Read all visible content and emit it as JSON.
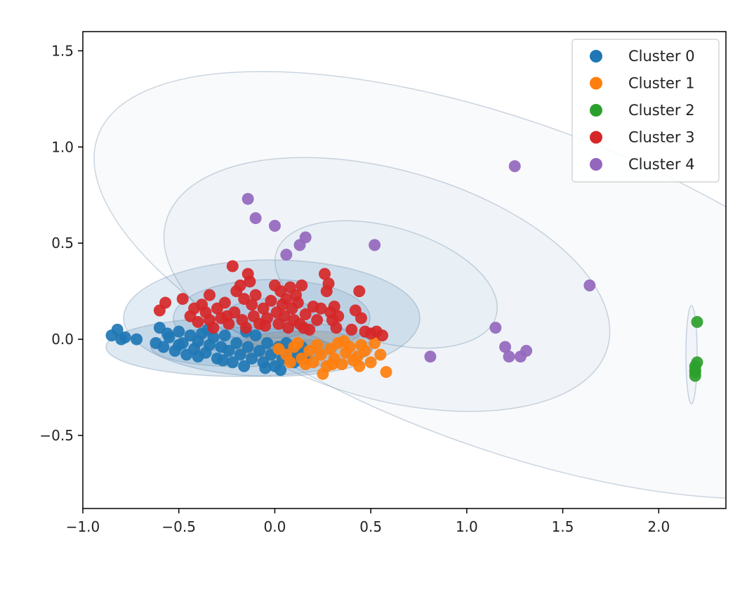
{
  "chart_data": {
    "type": "scatter",
    "title": "",
    "xlabel": "",
    "ylabel": "",
    "xlim": [
      -1.0,
      2.35
    ],
    "ylim": [
      -0.88,
      1.6
    ],
    "x_ticks": [
      -1.0,
      -0.5,
      0.0,
      0.5,
      1.0,
      1.5,
      2.0
    ],
    "x_tick_labels": [
      "−1.0",
      "−0.5",
      "0.0",
      "0.5",
      "1.0",
      "1.5",
      "2.0"
    ],
    "y_ticks": [
      -0.5,
      0.0,
      0.5,
      1.0,
      1.5
    ],
    "y_tick_labels": [
      "−0.5",
      "0.0",
      "0.5",
      "1.0",
      "1.5"
    ],
    "grid": false,
    "legend_position": "top-right",
    "series": [
      {
        "name": "Cluster 0",
        "color": "#1f77b4",
        "points": [
          [
            -0.85,
            0.02
          ],
          [
            -0.82,
            0.05
          ],
          [
            -0.8,
            0.0
          ],
          [
            -0.78,
            0.01
          ],
          [
            -0.72,
            0.0
          ],
          [
            -0.62,
            -0.02
          ],
          [
            -0.6,
            0.06
          ],
          [
            -0.58,
            -0.04
          ],
          [
            -0.55,
            0.01
          ],
          [
            -0.52,
            -0.06
          ],
          [
            -0.5,
            0.04
          ],
          [
            -0.48,
            -0.02
          ],
          [
            -0.46,
            -0.08
          ],
          [
            -0.44,
            0.02
          ],
          [
            -0.42,
            -0.05
          ],
          [
            -0.4,
            -0.01
          ],
          [
            -0.38,
            0.03
          ],
          [
            -0.36,
            -0.07
          ],
          [
            -0.34,
            -0.03
          ],
          [
            -0.32,
            0.01
          ],
          [
            -0.3,
            -0.1
          ],
          [
            -0.28,
            -0.04
          ],
          [
            -0.26,
            0.02
          ],
          [
            -0.24,
            -0.06
          ],
          [
            -0.22,
            -0.12
          ],
          [
            -0.2,
            -0.02
          ],
          [
            -0.18,
            -0.08
          ],
          [
            -0.16,
            -0.14
          ],
          [
            -0.14,
            -0.04
          ],
          [
            -0.12,
            -0.1
          ],
          [
            -0.1,
            0.02
          ],
          [
            -0.08,
            -0.06
          ],
          [
            -0.06,
            -0.12
          ],
          [
            -0.04,
            -0.02
          ],
          [
            -0.02,
            -0.08
          ],
          [
            0.0,
            -0.14
          ],
          [
            0.02,
            -0.04
          ],
          [
            0.04,
            -0.1
          ],
          [
            0.06,
            -0.02
          ],
          [
            0.08,
            -0.06
          ],
          [
            0.1,
            -0.12
          ],
          [
            0.12,
            -0.08
          ],
          [
            0.14,
            -0.04
          ],
          [
            0.16,
            -0.1
          ],
          [
            -0.56,
            0.03
          ],
          [
            -0.5,
            -0.03
          ],
          [
            -0.4,
            -0.09
          ],
          [
            -0.35,
            0.05
          ],
          [
            -0.27,
            -0.11
          ],
          [
            -0.15,
            0.04
          ],
          [
            -0.05,
            -0.15
          ],
          [
            0.03,
            -0.16
          ]
        ]
      },
      {
        "name": "Cluster 1",
        "color": "#ff7f0e",
        "points": [
          [
            0.02,
            -0.05
          ],
          [
            0.06,
            -0.08
          ],
          [
            0.1,
            -0.04
          ],
          [
            0.14,
            -0.1
          ],
          [
            0.18,
            -0.06
          ],
          [
            0.2,
            -0.12
          ],
          [
            0.22,
            -0.03
          ],
          [
            0.24,
            -0.08
          ],
          [
            0.25,
            -0.18
          ],
          [
            0.27,
            -0.14
          ],
          [
            0.29,
            -0.05
          ],
          [
            0.31,
            -0.1
          ],
          [
            0.33,
            -0.02
          ],
          [
            0.35,
            -0.13
          ],
          [
            0.37,
            -0.07
          ],
          [
            0.39,
            -0.04
          ],
          [
            0.41,
            -0.11
          ],
          [
            0.43,
            -0.09
          ],
          [
            0.45,
            -0.03
          ],
          [
            0.47,
            -0.06
          ],
          [
            0.5,
            -0.12
          ],
          [
            0.52,
            -0.02
          ],
          [
            0.55,
            -0.08
          ],
          [
            0.58,
            -0.17
          ],
          [
            0.3,
            -0.13
          ],
          [
            0.16,
            -0.13
          ],
          [
            0.12,
            -0.02
          ],
          [
            0.08,
            -0.12
          ],
          [
            0.36,
            -0.01
          ],
          [
            0.44,
            -0.14
          ]
        ]
      },
      {
        "name": "Cluster 2",
        "color": "#2ca02c",
        "points": [
          [
            2.2,
            0.09
          ],
          [
            2.2,
            -0.12
          ],
          [
            2.19,
            -0.14
          ],
          [
            2.19,
            -0.16
          ],
          [
            2.19,
            -0.17
          ],
          [
            2.19,
            -0.19
          ]
        ]
      },
      {
        "name": "Cluster 3",
        "color": "#d62728",
        "points": [
          [
            -0.6,
            0.15
          ],
          [
            -0.57,
            0.19
          ],
          [
            -0.48,
            0.21
          ],
          [
            -0.44,
            0.12
          ],
          [
            -0.42,
            0.16
          ],
          [
            -0.4,
            0.09
          ],
          [
            -0.38,
            0.18
          ],
          [
            -0.36,
            0.14
          ],
          [
            -0.34,
            0.1
          ],
          [
            -0.34,
            0.23
          ],
          [
            -0.32,
            0.06
          ],
          [
            -0.3,
            0.16
          ],
          [
            -0.28,
            0.11
          ],
          [
            -0.26,
            0.19
          ],
          [
            -0.24,
            0.08
          ],
          [
            -0.22,
            0.38
          ],
          [
            -0.21,
            0.14
          ],
          [
            -0.2,
            0.25
          ],
          [
            -0.18,
            0.28
          ],
          [
            -0.17,
            0.1
          ],
          [
            -0.16,
            0.21
          ],
          [
            -0.15,
            0.06
          ],
          [
            -0.14,
            0.34
          ],
          [
            -0.13,
            0.3
          ],
          [
            -0.12,
            0.18
          ],
          [
            -0.11,
            0.12
          ],
          [
            -0.1,
            0.23
          ],
          [
            -0.08,
            0.08
          ],
          [
            -0.06,
            0.16
          ],
          [
            -0.04,
            0.11
          ],
          [
            -0.02,
            0.2
          ],
          [
            0.0,
            0.28
          ],
          [
            0.01,
            0.14
          ],
          [
            0.02,
            0.08
          ],
          [
            0.03,
            0.25
          ],
          [
            0.04,
            0.18
          ],
          [
            0.05,
            0.12
          ],
          [
            0.06,
            0.21
          ],
          [
            0.07,
            0.06
          ],
          [
            0.08,
            0.27
          ],
          [
            0.09,
            0.16
          ],
          [
            0.1,
            0.1
          ],
          [
            0.11,
            0.23
          ],
          [
            0.12,
            0.19
          ],
          [
            0.13,
            0.08
          ],
          [
            0.14,
            0.28
          ],
          [
            0.16,
            0.13
          ],
          [
            0.18,
            0.05
          ],
          [
            0.2,
            0.17
          ],
          [
            0.22,
            0.1
          ],
          [
            0.24,
            0.16
          ],
          [
            0.26,
            0.34
          ],
          [
            0.27,
            0.25
          ],
          [
            0.28,
            0.29
          ],
          [
            0.29,
            0.14
          ],
          [
            0.3,
            0.1
          ],
          [
            0.31,
            0.17
          ],
          [
            0.32,
            0.06
          ],
          [
            0.33,
            0.12
          ],
          [
            0.4,
            0.05
          ],
          [
            0.42,
            0.15
          ],
          [
            0.44,
            0.25
          ],
          [
            0.45,
            0.11
          ],
          [
            0.47,
            0.04
          ],
          [
            0.5,
            0.03
          ],
          [
            0.53,
            0.04
          ],
          [
            0.56,
            0.02
          ],
          [
            -0.25,
            0.12
          ],
          [
            -0.05,
            0.07
          ],
          [
            0.15,
            0.06
          ]
        ]
      },
      {
        "name": "Cluster 4",
        "color": "#9467bd",
        "points": [
          [
            -0.14,
            0.73
          ],
          [
            -0.1,
            0.63
          ],
          [
            0.0,
            0.59
          ],
          [
            0.06,
            0.44
          ],
          [
            0.13,
            0.49
          ],
          [
            0.16,
            0.53
          ],
          [
            0.52,
            0.49
          ],
          [
            0.81,
            -0.09
          ],
          [
            1.15,
            0.06
          ],
          [
            1.2,
            -0.04
          ],
          [
            1.22,
            -0.09
          ],
          [
            1.25,
            0.9
          ],
          [
            1.28,
            -0.09
          ],
          [
            1.31,
            -0.06
          ],
          [
            1.64,
            0.28
          ]
        ]
      }
    ]
  }
}
